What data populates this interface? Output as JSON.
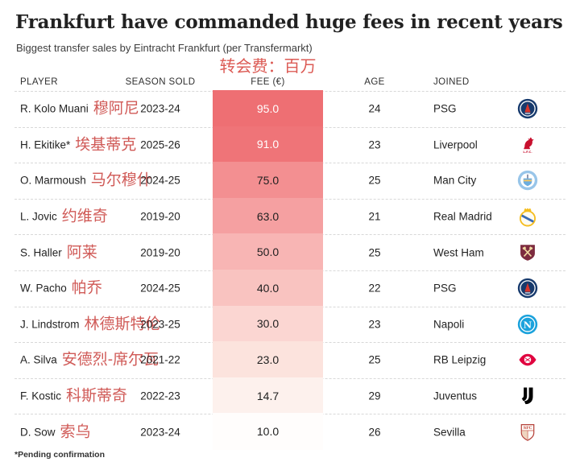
{
  "title": "Frankfurt have commanded huge fees in recent years",
  "subtitle": "Biggest transfer sales by Eintracht Frankfurt (per Transfermarkt)",
  "fee_axis_annotation": {
    "text": "转会费：百万",
    "color": "#dc5b55"
  },
  "accent_red": "#d05a57",
  "columns": {
    "player": "PLAYER",
    "season": "SEASON SOLD",
    "fee": "FEE (€)",
    "age": "AGE",
    "joined": "JOINED"
  },
  "footnote": "*Pending confirmation",
  "table": {
    "rows": [
      {
        "player": "R. Kolo Muani",
        "annotation": "穆阿尼",
        "season": "2023-24",
        "fee": "95.0",
        "age": "24",
        "joined": "PSG",
        "club_icon": "psg-crest",
        "fee_bg": "#ee6f73",
        "fee_fg": "#ffffff"
      },
      {
        "player": "H. Ekitike*",
        "annotation": "埃基蒂克",
        "season": "2025-26",
        "fee": "91.0",
        "age": "23",
        "joined": "Liverpool",
        "club_icon": "liverpool-crest",
        "fee_bg": "#ef7478",
        "fee_fg": "#ffffff"
      },
      {
        "player": "O. Marmoush",
        "annotation": "马尔穆什",
        "season": "2024-25",
        "fee": "75.0",
        "age": "25",
        "joined": "Man City",
        "club_icon": "man-city-crest",
        "fee_bg": "#f38f91",
        "fee_fg": "#1f1f1f"
      },
      {
        "player": "L. Jovic",
        "annotation": "约维奇",
        "season": "2019-20",
        "fee": "63.0",
        "age": "21",
        "joined": "Real Madrid",
        "club_icon": "real-madrid-crest",
        "fee_bg": "#f5a0a1",
        "fee_fg": "#1f1f1f"
      },
      {
        "player": "S. Haller",
        "annotation": "阿莱",
        "season": "2019-20",
        "fee": "50.0",
        "age": "25",
        "joined": "West Ham",
        "club_icon": "west-ham-crest",
        "fee_bg": "#f8b5b4",
        "fee_fg": "#1f1f1f"
      },
      {
        "player": "W. Pacho",
        "annotation": "帕乔",
        "season": "2024-25",
        "fee": "40.0",
        "age": "22",
        "joined": "PSG",
        "club_icon": "psg-crest",
        "fee_bg": "#f9c3c0",
        "fee_fg": "#1f1f1f"
      },
      {
        "player": "J. Lindstrom",
        "annotation": "林德斯特伦",
        "season": "2023-25",
        "fee": "30.0",
        "age": "23",
        "joined": "Napoli",
        "club_icon": "napoli-crest",
        "fee_bg": "#fbd6d2",
        "fee_fg": "#1f1f1f"
      },
      {
        "player": "A. Silva",
        "annotation": "安德烈-席尔瓦",
        "season": "2021-22",
        "fee": "23.0",
        "age": "25",
        "joined": "RB Leipzig",
        "club_icon": "rb-leipzig-crest",
        "fee_bg": "#fce3dd",
        "fee_fg": "#1f1f1f"
      },
      {
        "player": "F. Kostic",
        "annotation": "科斯蒂奇",
        "season": "2022-23",
        "fee": "14.7",
        "age": "29",
        "joined": "Juventus",
        "club_icon": "juventus-crest",
        "fee_bg": "#fdf1ed",
        "fee_fg": "#1f1f1f"
      },
      {
        "player": "D. Sow",
        "annotation": "索乌",
        "season": "2023-24",
        "fee": "10.0",
        "age": "26",
        "joined": "Sevilla",
        "club_icon": "sevilla-crest",
        "fee_bg": "#fffdfc",
        "fee_fg": "#1f1f1f"
      }
    ]
  },
  "chart_data": {
    "type": "table",
    "title": "Frankfurt have commanded huge fees in recent years",
    "subtitle": "Biggest transfer sales by Eintracht Frankfurt (per Transfermarkt)",
    "columns": [
      "PLAYER",
      "SEASON SOLD",
      "FEE (€)",
      "AGE",
      "JOINED"
    ],
    "rows": [
      [
        "R. Kolo Muani",
        "2023-24",
        95.0,
        24,
        "PSG"
      ],
      [
        "H. Ekitike*",
        "2025-26",
        91.0,
        23,
        "Liverpool"
      ],
      [
        "O. Marmoush",
        "2024-25",
        75.0,
        25,
        "Man City"
      ],
      [
        "L. Jovic",
        "2019-20",
        63.0,
        21,
        "Real Madrid"
      ],
      [
        "S. Haller",
        "2019-20",
        50.0,
        25,
        "West Ham"
      ],
      [
        "W. Pacho",
        "2024-25",
        40.0,
        22,
        "PSG"
      ],
      [
        "J. Lindstrom",
        "2023-25",
        30.0,
        23,
        "Napoli"
      ],
      [
        "A. Silva",
        "2021-22",
        23.0,
        25,
        "RB Leipzig"
      ],
      [
        "F. Kostic",
        "2022-23",
        14.7,
        29,
        "Juventus"
      ],
      [
        "D. Sow",
        "2023-24",
        10.0,
        26,
        "Sevilla"
      ]
    ],
    "heatmap_column": "FEE (€)",
    "fee_range": [
      10.0,
      95.0
    ],
    "heatmap_colors": [
      "#fffdfc",
      "#ee6f73"
    ],
    "annotation_fee_header_zh": "转会费：百万",
    "player_annotations_zh": [
      "穆阿尼",
      "埃基蒂克",
      "马尔穆什",
      "约维奇",
      "阿莱",
      "帕乔",
      "林德斯特伦",
      "安德烈-席尔瓦",
      "科斯蒂奇",
      "索乌"
    ],
    "footnote": "*Pending confirmation"
  }
}
